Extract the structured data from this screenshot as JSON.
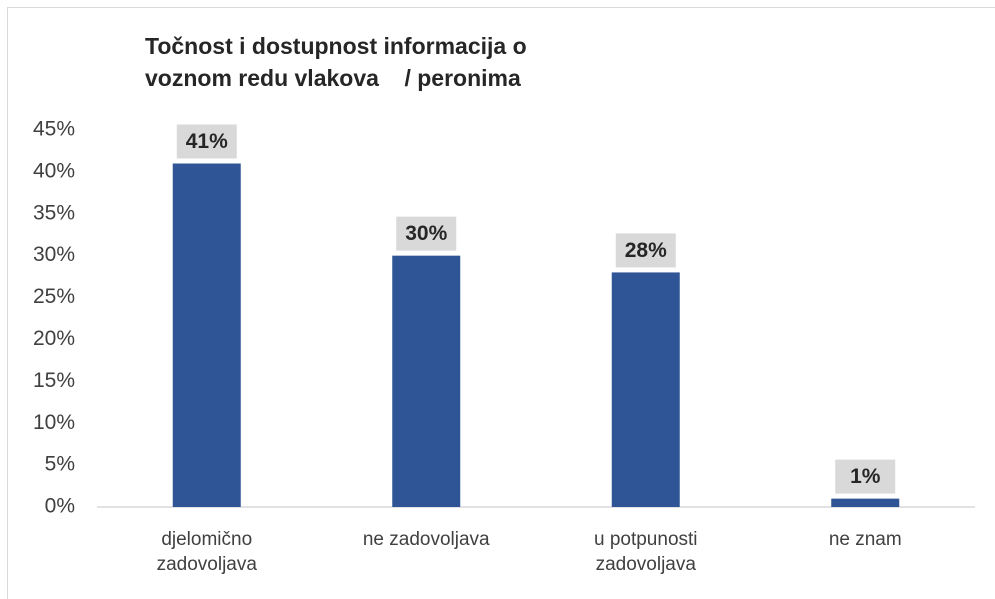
{
  "chart_data": {
    "type": "bar",
    "title": [
      "Točnost i dostupnost informacija o",
      "voznom redu vlakova    / peronima"
    ],
    "categories": [
      "djelomično zadovoljava",
      "ne zadovoljava",
      "u potpunosti zadovoljava",
      "ne znam"
    ],
    "values": [
      41,
      30,
      28,
      1
    ],
    "value_labels": [
      "41%",
      "30%",
      "28%",
      "1%"
    ],
    "color": "#2f5597",
    "ylim": [
      0,
      45
    ],
    "yticks": [
      {
        "value": 0,
        "label": "0%"
      },
      {
        "value": 5,
        "label": "5%"
      },
      {
        "value": 10,
        "label": "10%"
      },
      {
        "value": 15,
        "label": "15%"
      },
      {
        "value": 20,
        "label": "20%"
      },
      {
        "value": 25,
        "label": "25%"
      },
      {
        "value": 30,
        "label": "30%"
      },
      {
        "value": 35,
        "label": "35%"
      },
      {
        "value": 40,
        "label": "40%"
      },
      {
        "value": 45,
        "label": "45%"
      }
    ],
    "grid": false
  }
}
